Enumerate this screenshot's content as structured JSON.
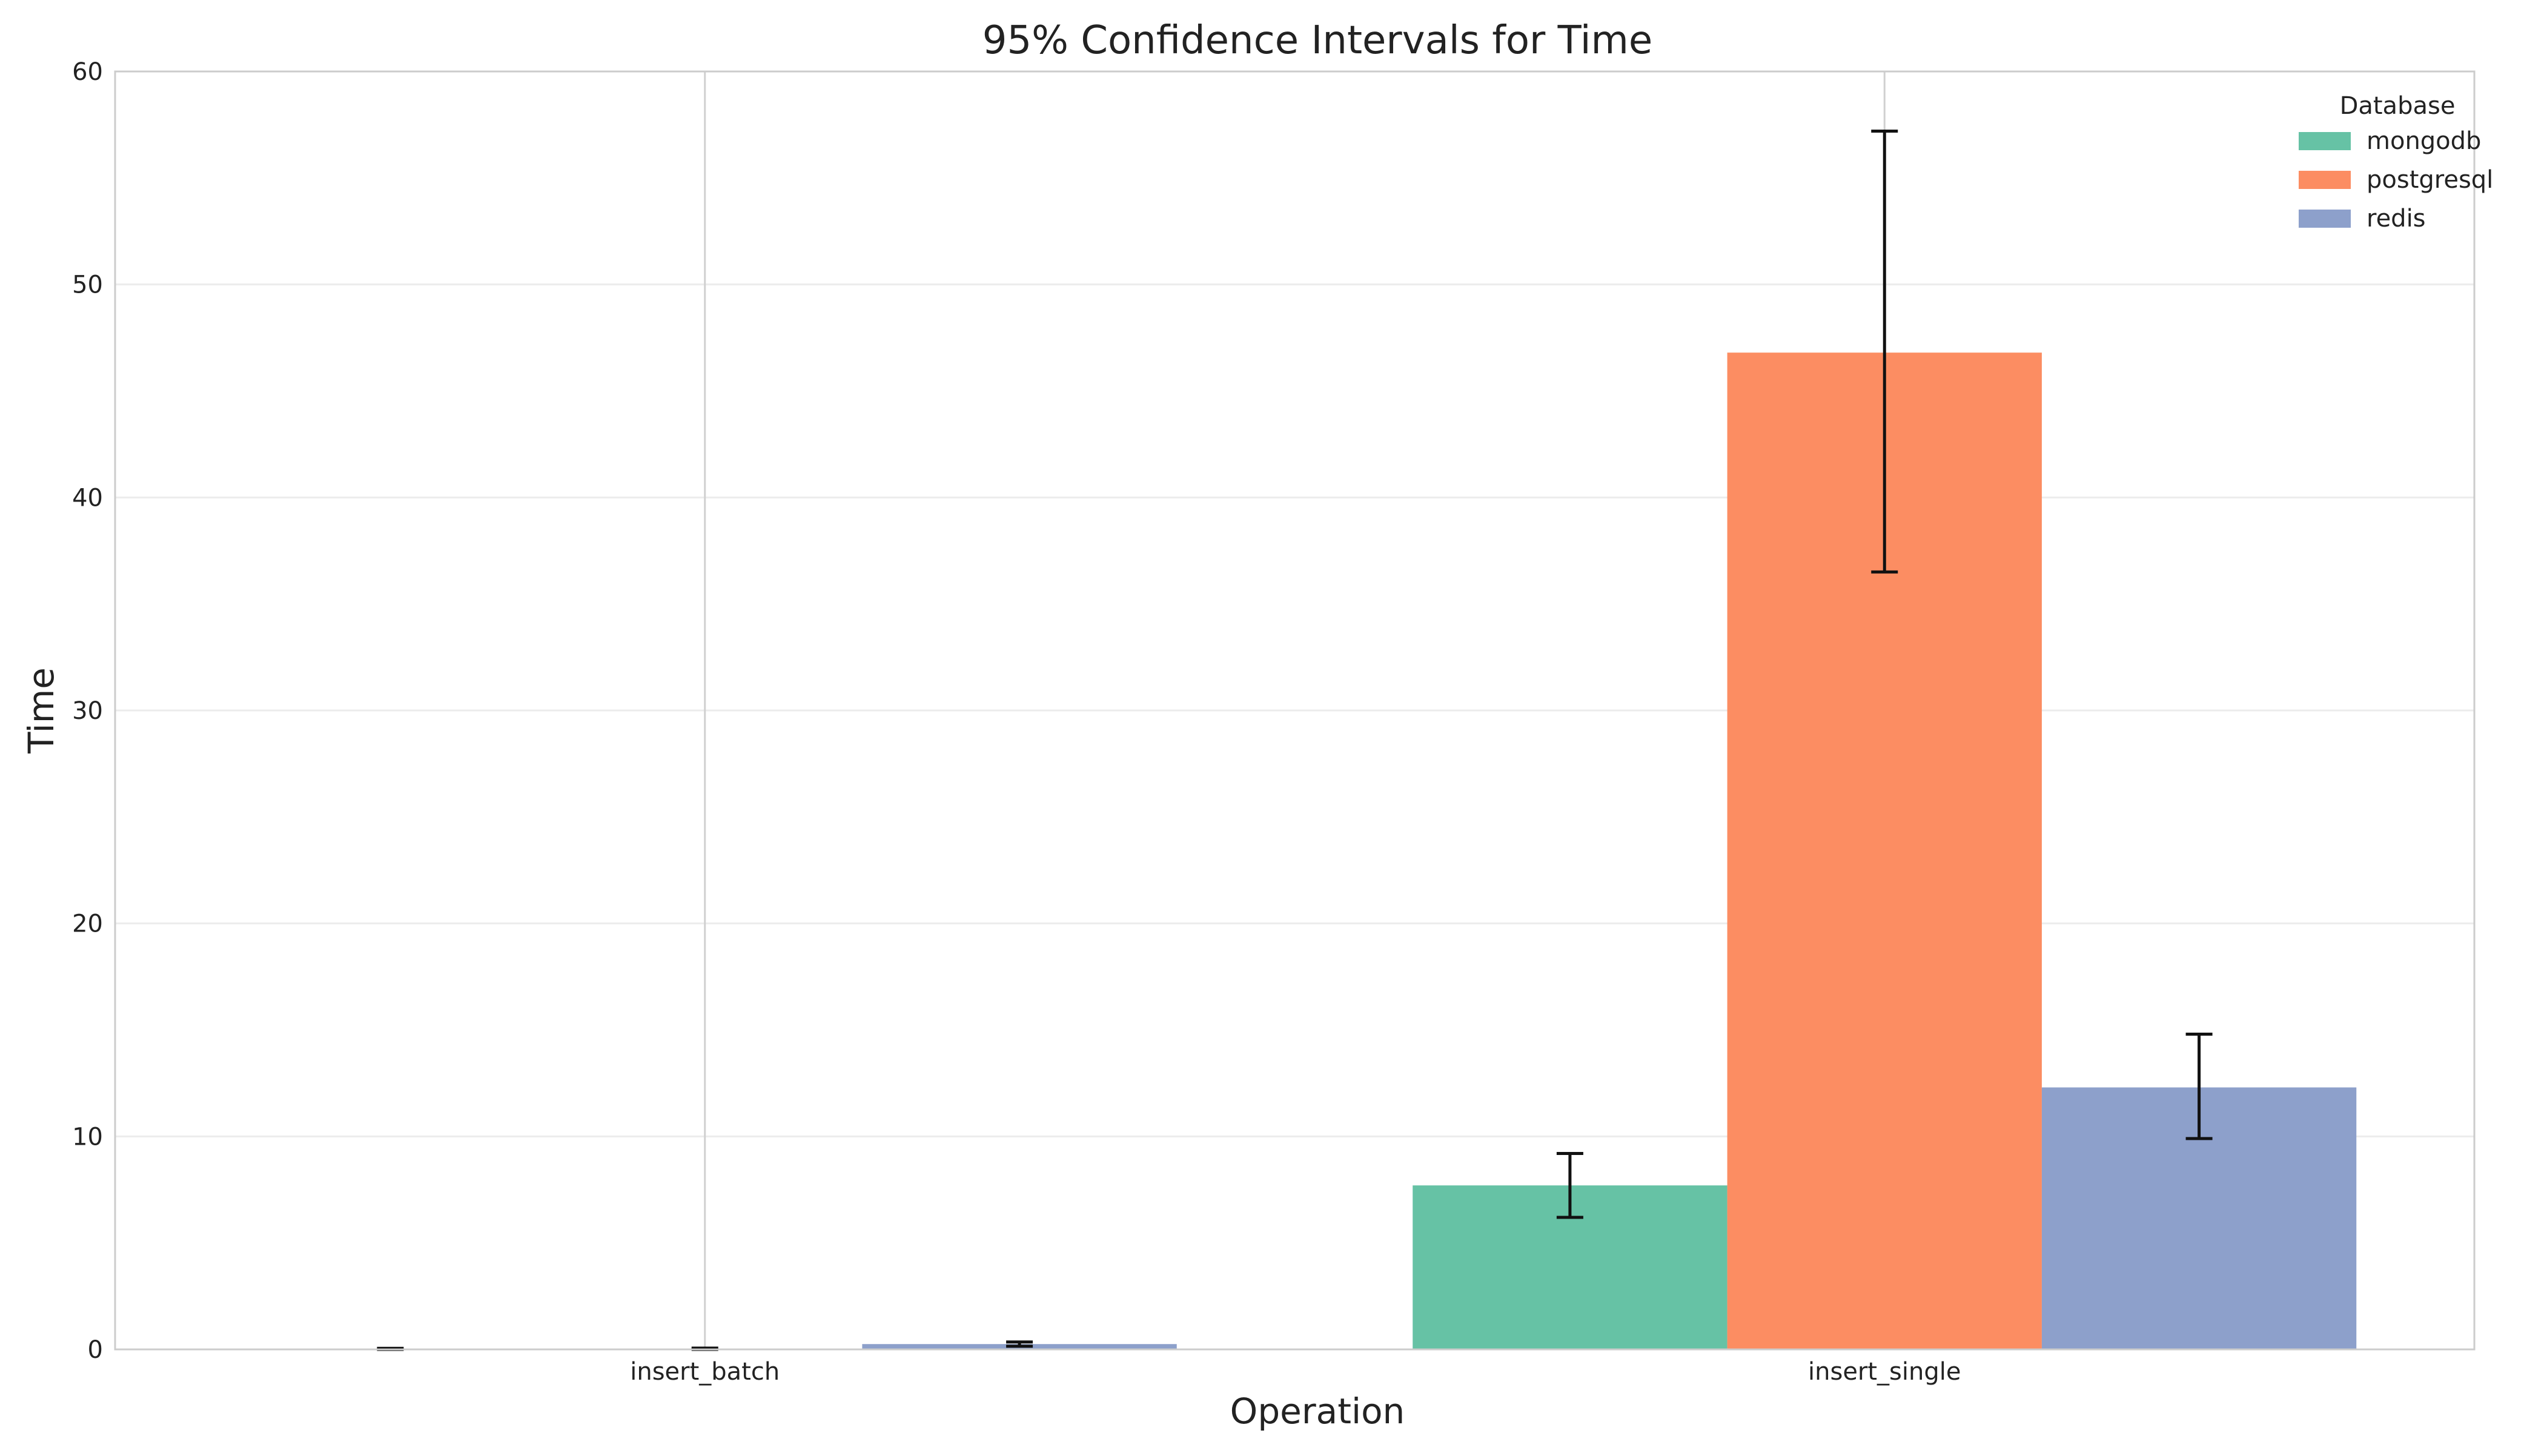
{
  "chart_data": {
    "type": "bar",
    "title": "95% Confidence Intervals for Time",
    "xlabel": "Operation",
    "ylabel": "Time",
    "categories": [
      "insert_batch",
      "insert_single"
    ],
    "ylim": [
      0,
      60
    ],
    "yticks": [
      0,
      10,
      20,
      30,
      40,
      50,
      60
    ],
    "grid": true,
    "legend": {
      "title": "Database",
      "position": "top-right"
    },
    "series": [
      {
        "name": "mongodb",
        "color": "#66c2a5",
        "values": [
          0.02,
          7.7
        ],
        "ci_low": [
          0.0,
          6.2
        ],
        "ci_high": [
          0.05,
          9.2
        ]
      },
      {
        "name": "postgresql",
        "color": "#fc8d62",
        "values": [
          0.03,
          46.8
        ],
        "ci_low": [
          0.0,
          36.5
        ],
        "ci_high": [
          0.06,
          57.2
        ]
      },
      {
        "name": "redis",
        "color": "#8da0cb",
        "values": [
          0.25,
          12.3
        ],
        "ci_low": [
          0.15,
          9.9
        ],
        "ci_high": [
          0.35,
          14.8
        ]
      }
    ]
  }
}
